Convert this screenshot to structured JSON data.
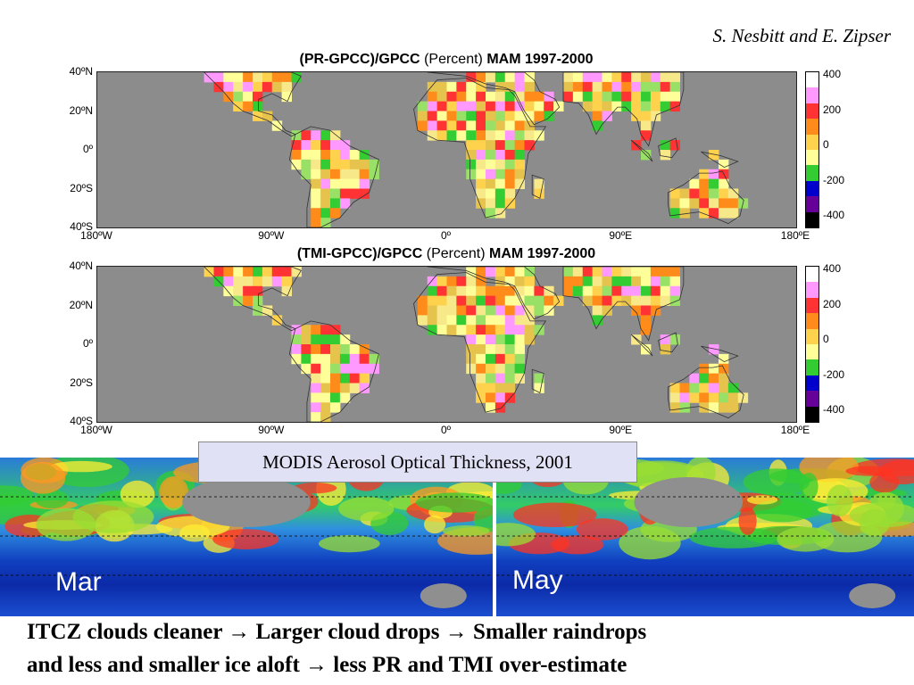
{
  "credit": "S. Nesbitt and E. Zipser",
  "panels": [
    {
      "title_bold1": "(PR-GPCC)/GPCC",
      "title_plain": "(Percent)",
      "title_bold2": "MAM 1997-2000"
    },
    {
      "title_bold1": "(TMI-GPCC)/GPCC",
      "title_plain": "(Percent)",
      "title_bold2": "MAM 1997-2000"
    }
  ],
  "lat_labels": [
    "40ºN",
    "20ºN",
    "0º",
    "20ºS",
    "40ºS"
  ],
  "lon_labels": [
    "180ºW",
    "90ºW",
    "0º",
    "90ºE",
    "180ºE"
  ],
  "colorbar_labels": [
    "400",
    "200",
    "0",
    "-200",
    "-400"
  ],
  "colors": {
    "ocean_gray": "#8c8c8c",
    "colorbar_stops": [
      "#ffffff",
      "#ff99ff",
      "#ff3333",
      "#ff8c1a",
      "#ffd24d",
      "#ffff99",
      "#33cc33",
      "#0000cc",
      "#660099",
      "#000000"
    ]
  },
  "modis_label": "MODIS Aerosol Optical Thickness, 2001",
  "sat_captions": [
    "Mar",
    "May"
  ],
  "bottom_line1": "ITCZ clouds cleaner → Larger cloud drops → Smaller raindrops",
  "bottom_line2": "and less and smaller ice aloft → less PR and TMI over-estimate"
}
